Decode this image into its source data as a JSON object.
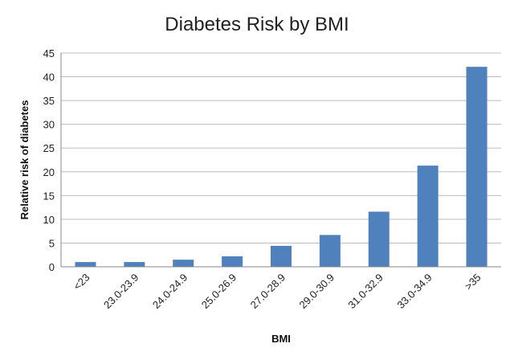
{
  "chart_data": {
    "type": "bar",
    "title": "Diabetes Risk by BMI",
    "xlabel": "BMI",
    "ylabel": "Relative risk of diabetes",
    "categories": [
      "<23",
      "23.0-23.9",
      "24.0-24.9",
      "25.0-26.9",
      "27.0-28.9",
      "29.0-30.9",
      "31.0-32.9",
      "33.0-34.9",
      ">35"
    ],
    "values": [
      1.0,
      1.0,
      1.5,
      2.2,
      4.4,
      6.7,
      11.6,
      21.3,
      42.1
    ],
    "ylim": [
      0,
      45
    ],
    "yticks": [
      0,
      5,
      10,
      15,
      20,
      25,
      30,
      35,
      40,
      45
    ],
    "grid": true,
    "legend": "none",
    "bar_color": "#4f81bd"
  }
}
